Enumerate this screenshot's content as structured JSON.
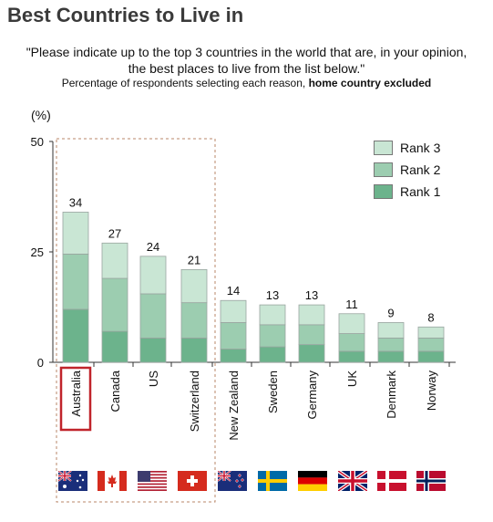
{
  "header": {
    "title": "Best Countries to Live in",
    "question_line1": "\"Please indicate up to the top 3 countries in the world that are, in your opinion,",
    "question_line2": "the best places to live from the list below.\"",
    "subtitle_prefix": "Percentage of respondents selecting each reason, ",
    "subtitle_bold": "home country excluded",
    "unit": "(%)"
  },
  "colors": {
    "rank1": "#6cb38c",
    "rank2": "#9ccdb0",
    "rank3": "#c9e6d4",
    "highlight": "#c0242b",
    "dashed_box": "#b9876a"
  },
  "chart_data": {
    "type": "bar",
    "stacked": true,
    "categories": [
      "Australia",
      "Canada",
      "US",
      "Switzerland",
      "New Zealand",
      "Sweden",
      "Germany",
      "UK",
      "Denmark",
      "Norway"
    ],
    "series": [
      {
        "name": "Rank 1",
        "values": [
          12,
          7,
          5.5,
          5.5,
          3,
          3.5,
          4,
          2.5,
          2.5,
          2.5
        ]
      },
      {
        "name": "Rank 2",
        "values": [
          12.5,
          12,
          10,
          8,
          6,
          5,
          4.5,
          4,
          3,
          3
        ]
      },
      {
        "name": "Rank 3",
        "values": [
          9.5,
          8,
          8.5,
          7.5,
          5,
          4.5,
          4.5,
          4.5,
          3.5,
          2.5
        ]
      }
    ],
    "totals": [
      34,
      27,
      24,
      21,
      14,
      13,
      13,
      11,
      9,
      8
    ],
    "yticks": [
      0,
      25,
      50
    ],
    "ylim": [
      0,
      50
    ],
    "legend_position": "top-right",
    "highlighted_category": "Australia"
  },
  "flags": [
    "australia-flag",
    "canada-flag",
    "us-flag",
    "switzerland-flag",
    "new-zealand-flag",
    "sweden-flag",
    "germany-flag",
    "uk-flag",
    "denmark-flag",
    "norway-flag"
  ]
}
